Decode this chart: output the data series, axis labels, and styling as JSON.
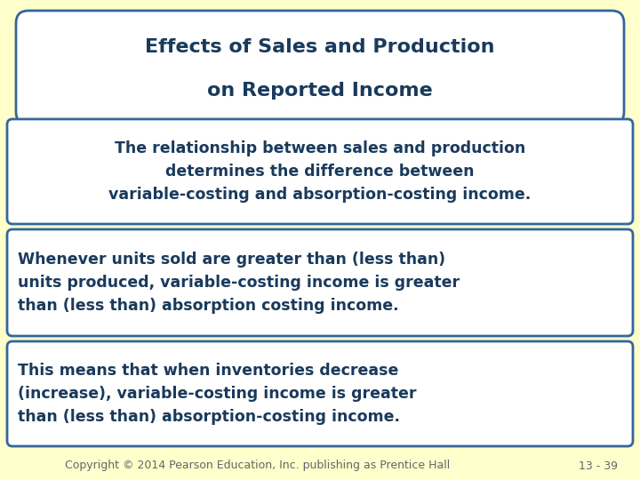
{
  "background_color": "#FFFFCC",
  "title_text_line1": "Effects of Sales and Production",
  "title_text_line2": "on Reported Income",
  "title_box_bg": "#FFFFFF",
  "title_box_border": "#336699",
  "text_color": "#1A3A5C",
  "box_bg": "#FFFFFF",
  "box_border": "#336699",
  "box1_line1": "The relationship between sales and production",
  "box1_line2": "determines the difference between",
  "box1_line3": "variable-costing and absorption-costing income.",
  "box2_line1": "Whenever units sold are greater than (less than)",
  "box2_line2": "units produced, variable-costing income is greater",
  "box2_line3": "than (less than) absorption costing income.",
  "box3_line1": "This means that when inventories decrease",
  "box3_line2": "(increase), variable-costing income is greater",
  "box3_line3": "than (less than) absorption-costing income.",
  "footer_left": "Copyright © 2014 Pearson Education, Inc. publishing as Prentice Hall",
  "footer_right": "13 - 39",
  "footer_color": "#666666",
  "title_fontsize": 16,
  "body_fontsize": 12.5,
  "footer_fontsize": 9
}
